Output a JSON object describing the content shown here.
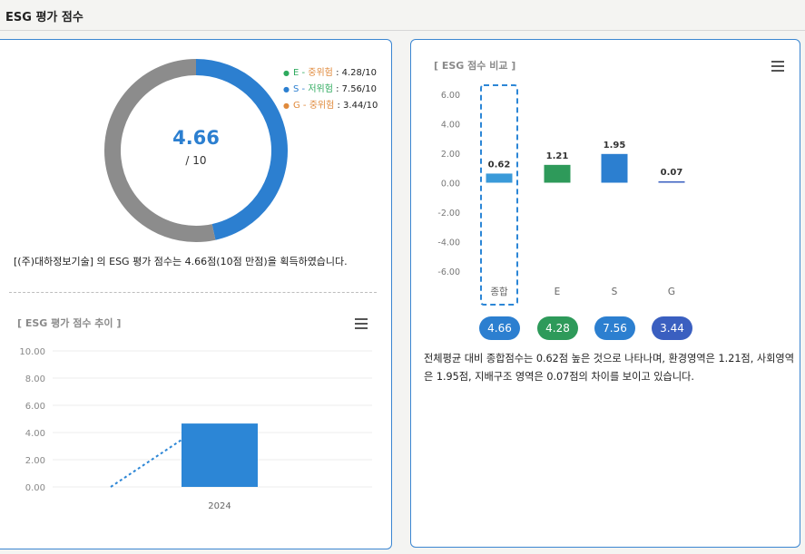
{
  "page": {
    "title": "ESG 평가 점수"
  },
  "score_card": {
    "value": "4.66",
    "max": "/ 10",
    "legend": [
      {
        "letter": "E",
        "sep": " - ",
        "risk": "중위험",
        "score": " : 4.28/10",
        "color": "#2eaa5e",
        "risk_color": "#e08a3c"
      },
      {
        "letter": "S",
        "sep": " - ",
        "risk": "저위험",
        "score": " : 7.56/10",
        "color": "#2c7fd0",
        "risk_color": "#2eaa5e"
      },
      {
        "letter": "G",
        "sep": " - ",
        "risk": "중위험",
        "score": " : 3.44/10",
        "color": "#e08a3c",
        "risk_color": "#e08a3c"
      }
    ],
    "description": "[(주)대하정보기술] 의 ESG 평가 점수는 4.66점(10점 만점)을 획득하였습니다."
  },
  "trend": {
    "title": "[ ESG 평가 점수 추이 ]"
  },
  "comparison": {
    "title": "[ ESG 점수 비교 ]",
    "pills": [
      {
        "label": "4.66",
        "color": "#2c7fd0"
      },
      {
        "label": "4.28",
        "color": "#2e9a5a"
      },
      {
        "label": "7.56",
        "color": "#2c7fd0"
      },
      {
        "label": "3.44",
        "color": "#3a5fc0"
      }
    ],
    "description": "전체평균 대비 종합점수는 0.62점 높은 것으로 나타나며, 환경영역은 1.21점, 사회영역은 1.95점, 지배구조 영역은 0.07점의 차이를 보이고 있습니다."
  },
  "chart_data": [
    {
      "type": "pie",
      "title": "",
      "values": [
        4.66,
        5.34
      ],
      "colors": [
        "#2c7fd0",
        "#8c8c8c"
      ],
      "center_label": "4.66"
    },
    {
      "type": "bar",
      "title": "[ ESG 평가 점수 추이 ]",
      "categories": [
        "2024"
      ],
      "values": [
        4.66
      ],
      "ylim": [
        0,
        10
      ],
      "yticks": [
        "0.00",
        "2.00",
        "4.00",
        "6.00",
        "8.00",
        "10.00"
      ],
      "bar_color": "#2c86d6",
      "line_color": "#2c86d6"
    },
    {
      "type": "bar",
      "title": "[ ESG 점수 비교 ]",
      "categories": [
        "종합",
        "E",
        "S",
        "G"
      ],
      "values": [
        0.62,
        1.21,
        1.95,
        0.07
      ],
      "data_labels": [
        "0.62",
        "1.21",
        "1.95",
        "0.07"
      ],
      "colors": [
        "#3a9ad9",
        "#2e9a5a",
        "#2c7fd0",
        "#3a5fc0"
      ],
      "ylim": [
        -6,
        6
      ],
      "yticks": [
        "-6.00",
        "-4.00",
        "-2.00",
        "0.00",
        "2.00",
        "4.00",
        "6.00"
      ],
      "highlight": "종합"
    }
  ]
}
